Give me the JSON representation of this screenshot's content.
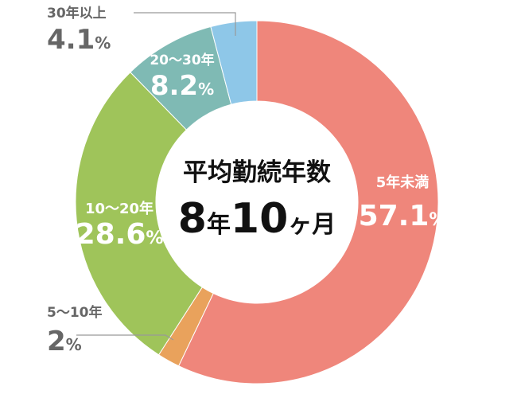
{
  "chart_data": {
    "type": "pie",
    "donut": true,
    "center": {
      "title": "平均勤続年数",
      "value_years": "8",
      "unit_year": "年",
      "value_months": "10",
      "unit_month": "ヶ月"
    },
    "segments": [
      {
        "label": "5年未満",
        "value": 57.1,
        "value_text": "57.1",
        "unit": "%",
        "color": "#EF867B"
      },
      {
        "label": "5〜10年",
        "value": 2,
        "value_text": "2",
        "unit": "%",
        "color": "#E9A25C"
      },
      {
        "label": "10〜20年",
        "value": 28.6,
        "value_text": "28.6",
        "unit": "%",
        "color": "#9FC45A"
      },
      {
        "label": "20〜30年",
        "value": 8.2,
        "value_text": "8.2",
        "unit": "%",
        "color": "#7FBAB4"
      },
      {
        "label": "30年以上",
        "value": 4.1,
        "value_text": "4.1",
        "unit": "%",
        "color": "#8EC7E8"
      }
    ]
  }
}
